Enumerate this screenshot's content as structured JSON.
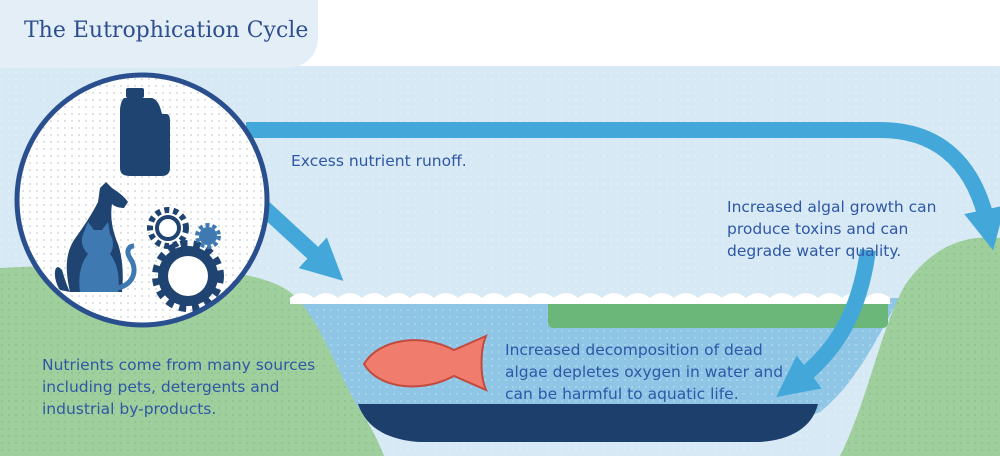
{
  "title": "The Eutrophication Cycle",
  "labels": {
    "runoff": "Excess nutrient runoff.",
    "algal_growth": "Increased algal growth can produce toxins and can degrade water quality.",
    "decomposition": "Increased decomposition of dead algae depletes oxygen in water and can be harmful to aquatic life.",
    "sources": "Nutrients come from many sources including pets, detergents and industrial by-products."
  },
  "icons": [
    "detergent-bottle-icon",
    "dog-icon",
    "cat-icon",
    "gears-icon",
    "fish-icon"
  ],
  "colors": {
    "sky": "#d6e9f4",
    "title_tab": "#e3eef7",
    "land": "#9fcf9c",
    "water": "#8fc6e6",
    "algae": "#6ab779",
    "lake_bed": "#1d3f6b",
    "arrow": "#43a8d9",
    "icon_navy": "#1f4472",
    "circle_border": "#2a4f8e",
    "fish": "#ef7c6c",
    "text": "#2f57a6"
  }
}
